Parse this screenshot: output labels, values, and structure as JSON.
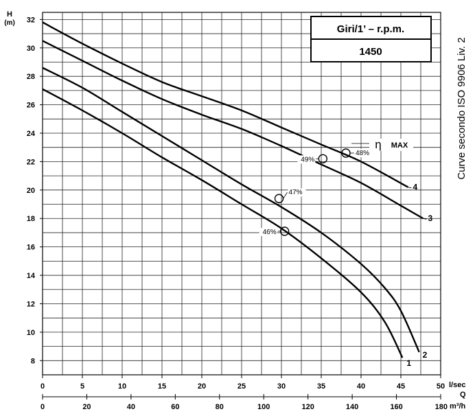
{
  "chart_data": {
    "type": "line",
    "y_label_top": "H",
    "y_label_unit": "(m)",
    "x_unit_top": "l/sec",
    "x_label_mid": "Q",
    "x_unit_bottom": "m³/h",
    "side_text": "Curve secondo ISO 9906 Liv. 2",
    "legend_header": "Giri/1’ – r.p.m.",
    "legend_value": "1450",
    "eta_symbol": "η",
    "eta_label": "MAX",
    "xlim": [
      0,
      50
    ],
    "ylim": [
      7,
      32.5
    ],
    "x_ticks_lsec": [
      "0",
      "5",
      "10",
      "15",
      "20",
      "25",
      "30",
      "35",
      "40",
      "45",
      "50"
    ],
    "x_ticks_m3h": [
      "0",
      "20",
      "40",
      "60",
      "80",
      "100",
      "120",
      "140",
      "160",
      "180"
    ],
    "y_ticks": [
      "8",
      "10",
      "12",
      "14",
      "16",
      "18",
      "20",
      "22",
      "24",
      "26",
      "28",
      "30",
      "32"
    ],
    "grid": true,
    "series": [
      {
        "name": "1",
        "x": [
          0,
          5,
          10,
          15,
          20,
          25,
          30,
          35,
          40,
          43,
          45.2
        ],
        "y": [
          27.1,
          25.6,
          24.0,
          22.3,
          20.7,
          19.0,
          17.3,
          15.2,
          12.8,
          10.7,
          8.2
        ]
      },
      {
        "name": "2",
        "x": [
          0,
          5,
          10,
          15,
          20,
          25,
          30,
          35,
          40,
          43,
          45,
          47.3
        ],
        "y": [
          28.6,
          27.2,
          25.5,
          23.8,
          22.1,
          20.4,
          18.8,
          17.0,
          14.8,
          13.1,
          11.5,
          8.6
        ]
      },
      {
        "name": "3",
        "x": [
          0,
          5,
          10,
          15,
          20,
          25,
          30,
          35,
          40,
          45,
          47.8
        ],
        "y": [
          30.5,
          29.1,
          27.7,
          26.4,
          25.3,
          24.3,
          23.1,
          21.8,
          20.5,
          18.9,
          18.0
        ]
      },
      {
        "name": "4",
        "x": [
          0,
          5,
          10,
          15,
          20,
          25,
          30,
          35,
          40,
          45.9
        ],
        "y": [
          31.8,
          30.3,
          28.9,
          27.6,
          26.6,
          25.6,
          24.4,
          23.2,
          22.0,
          20.2
        ]
      }
    ],
    "efficiency_points": [
      {
        "label": "46%",
        "x": 30.4,
        "y": 17.1
      },
      {
        "label": "47%",
        "x": 29.7,
        "y": 19.4
      },
      {
        "label": "49%",
        "x": 35.2,
        "y": 22.2
      },
      {
        "label": "48%",
        "x": 38.1,
        "y": 22.6
      }
    ]
  }
}
